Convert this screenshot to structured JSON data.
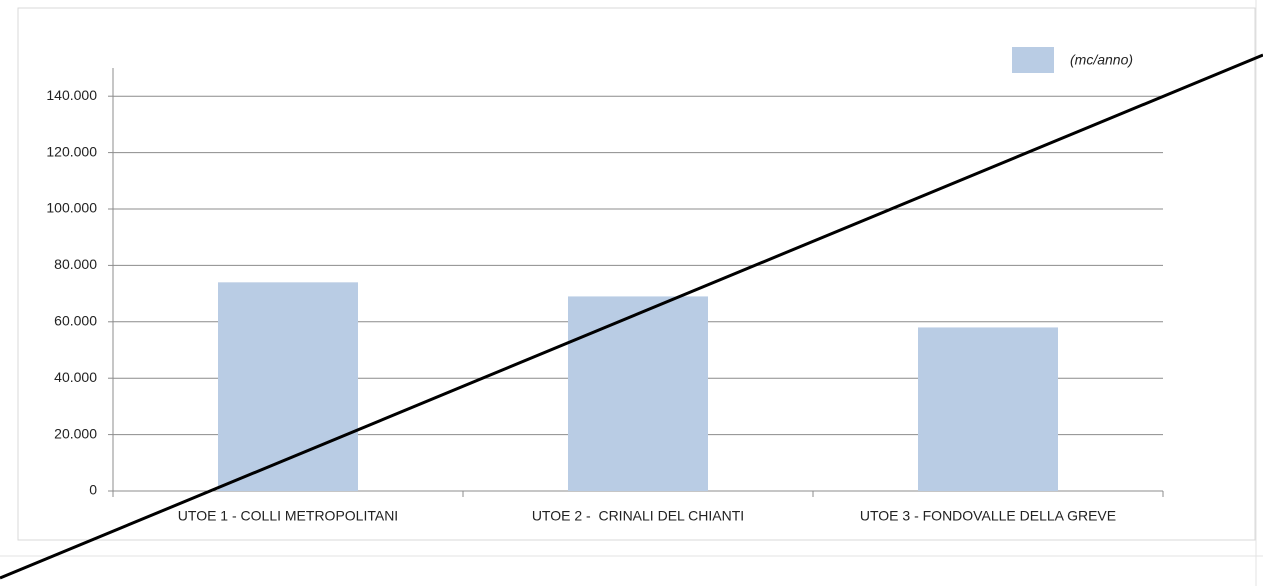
{
  "chart_data": {
    "type": "bar",
    "categories": [
      "UTOE 1 - COLLI METROPOLITANI",
      "UTOE 2 -  CRINALI DEL CHIANTI",
      "UTOE 3 - FONDOVALLE DELLA GREVE"
    ],
    "series": [
      {
        "name": "(mc/anno)",
        "color": "#b9cce4",
        "values": [
          74000,
          69000,
          58000
        ]
      }
    ],
    "ylim": [
      0,
      150000
    ],
    "yticks": [
      0,
      {
        "value": 20000,
        "label": "20.000"
      },
      {
        "value": 40000,
        "label": "40.000"
      },
      {
        "value": 60000,
        "label": "60.000"
      },
      {
        "value": 80000,
        "label": "80.000"
      },
      {
        "value": 100000,
        "label": "100.000"
      },
      {
        "value": 120000,
        "label": "120.000"
      },
      {
        "value": 140000,
        "label": "140.000"
      }
    ],
    "grid": true,
    "legend": "top-right"
  }
}
